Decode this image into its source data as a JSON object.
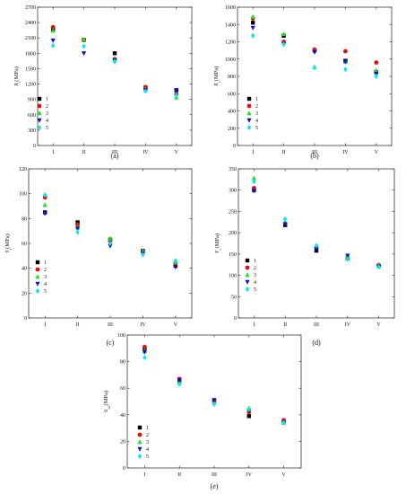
{
  "chart_data": [
    {
      "type": "scatter",
      "caption": "(a)",
      "ylabel": "X_t(MPa)",
      "ylabel_main": "X",
      "ylabel_sub": "t",
      "ylabel_unit": "(MPa)",
      "categories": [
        "I",
        "II",
        "III",
        "IV",
        "V"
      ],
      "ylim": [
        0,
        2700
      ],
      "yticks": [
        0,
        300,
        600,
        900,
        1200,
        1500,
        1800,
        2100,
        2400,
        2700
      ],
      "legend_position": "left",
      "series": [
        {
          "name": "1",
          "values": [
            2270,
            2060,
            1800,
            1130,
            1080
          ]
        },
        {
          "name": "2",
          "values": [
            2310,
            2060,
            1690,
            1140,
            1000
          ]
        },
        {
          "name": "3",
          "values": [
            2240,
            2070,
            1680,
            1100,
            940
          ]
        },
        {
          "name": "4",
          "values": [
            2050,
            1800,
            1660,
            1080,
            1080
          ]
        },
        {
          "name": "5",
          "values": [
            1950,
            1940,
            1640,
            1060,
            980
          ]
        }
      ]
    },
    {
      "type": "scatter",
      "caption": "(b)",
      "ylabel": "X_c(MPa)",
      "ylabel_main": "X",
      "ylabel_sub": "c",
      "ylabel_unit": "(MPa)",
      "categories": [
        "I",
        "II",
        "III",
        "IV",
        "V"
      ],
      "ylim": [
        0,
        1600
      ],
      "yticks": [
        0,
        200,
        400,
        600,
        800,
        1000,
        1200,
        1400,
        1600
      ],
      "legend_position": "bottom-left",
      "series": [
        {
          "name": "1",
          "values": [
            1420,
            1270,
            1100,
            980,
            850
          ]
        },
        {
          "name": "2",
          "values": [
            1470,
            1200,
            1110,
            1090,
            960
          ]
        },
        {
          "name": "3",
          "values": [
            1490,
            1290,
            910,
            970,
            870
          ]
        },
        {
          "name": "4",
          "values": [
            1360,
            1170,
            1080,
            970,
            830
          ]
        },
        {
          "name": "5",
          "values": [
            1270,
            1170,
            900,
            880,
            800
          ]
        }
      ]
    },
    {
      "type": "scatter",
      "caption": "(c)",
      "ylabel": "Y_t(MPa)",
      "ylabel_main": "Y",
      "ylabel_sub": "t",
      "ylabel_unit": "(MPa)",
      "categories": [
        "I",
        "II",
        "III",
        "IV",
        "V"
      ],
      "ylim": [
        0,
        120
      ],
      "yticks": [
        0,
        20,
        40,
        60,
        80,
        100,
        120
      ],
      "legend_position": "left",
      "series": [
        {
          "name": "1",
          "values": [
            85,
            77,
            63,
            54,
            42
          ]
        },
        {
          "name": "2",
          "values": [
            97,
            75,
            62,
            53,
            44
          ]
        },
        {
          "name": "3",
          "values": [
            91,
            73,
            64,
            54,
            45
          ]
        },
        {
          "name": "4",
          "values": [
            84,
            72,
            58,
            52,
            41
          ]
        },
        {
          "name": "5",
          "values": [
            99,
            69,
            60,
            51,
            46
          ]
        }
      ]
    },
    {
      "type": "scatter",
      "caption": "(d)",
      "ylabel": "Y_c(MPa)",
      "ylabel_main": "Y",
      "ylabel_sub": "c",
      "ylabel_unit": "(MPa)",
      "categories": [
        "I",
        "II",
        "III",
        "IV",
        "V"
      ],
      "ylim": [
        0,
        350
      ],
      "yticks": [
        0,
        50,
        100,
        150,
        200,
        250,
        300,
        350
      ],
      "legend_position": "left",
      "series": [
        {
          "name": "1",
          "values": [
            300,
            218,
            158,
            140,
            122
          ]
        },
        {
          "name": "2",
          "values": [
            305,
            222,
            165,
            142,
            124
          ]
        },
        {
          "name": "3",
          "values": [
            328,
            226,
            168,
            145,
            125
          ]
        },
        {
          "name": "4",
          "values": [
            298,
            220,
            162,
            146,
            121
          ]
        },
        {
          "name": "5",
          "values": [
            320,
            232,
            170,
            138,
            120
          ]
        }
      ]
    },
    {
      "type": "scatter",
      "caption": "(e)",
      "ylabel": "S_12(MPa)",
      "ylabel_main": "S",
      "ylabel_sub": "12",
      "ylabel_unit": "(MPa)",
      "categories": [
        "I",
        "II",
        "III",
        "IV",
        "V"
      ],
      "ylim": [
        0,
        100
      ],
      "yticks": [
        0,
        20,
        40,
        60,
        80,
        100
      ],
      "legend_position": "left",
      "series": [
        {
          "name": "1",
          "values": [
            90,
            66,
            51,
            39,
            35
          ]
        },
        {
          "name": "2",
          "values": [
            91,
            67,
            50,
            42,
            36
          ]
        },
        {
          "name": "3",
          "values": [
            88,
            65,
            49,
            45,
            34
          ]
        },
        {
          "name": "4",
          "values": [
            87,
            66,
            51,
            43,
            34
          ]
        },
        {
          "name": "5",
          "values": [
            83,
            63,
            48,
            44,
            34
          ]
        }
      ]
    }
  ],
  "series_colors": [
    "#000000",
    "#e01010",
    "#19e019",
    "#1010d0",
    "#00e8f0"
  ],
  "series_markers": [
    "square",
    "circle",
    "triangle-up",
    "triangle-down",
    "diamond"
  ]
}
